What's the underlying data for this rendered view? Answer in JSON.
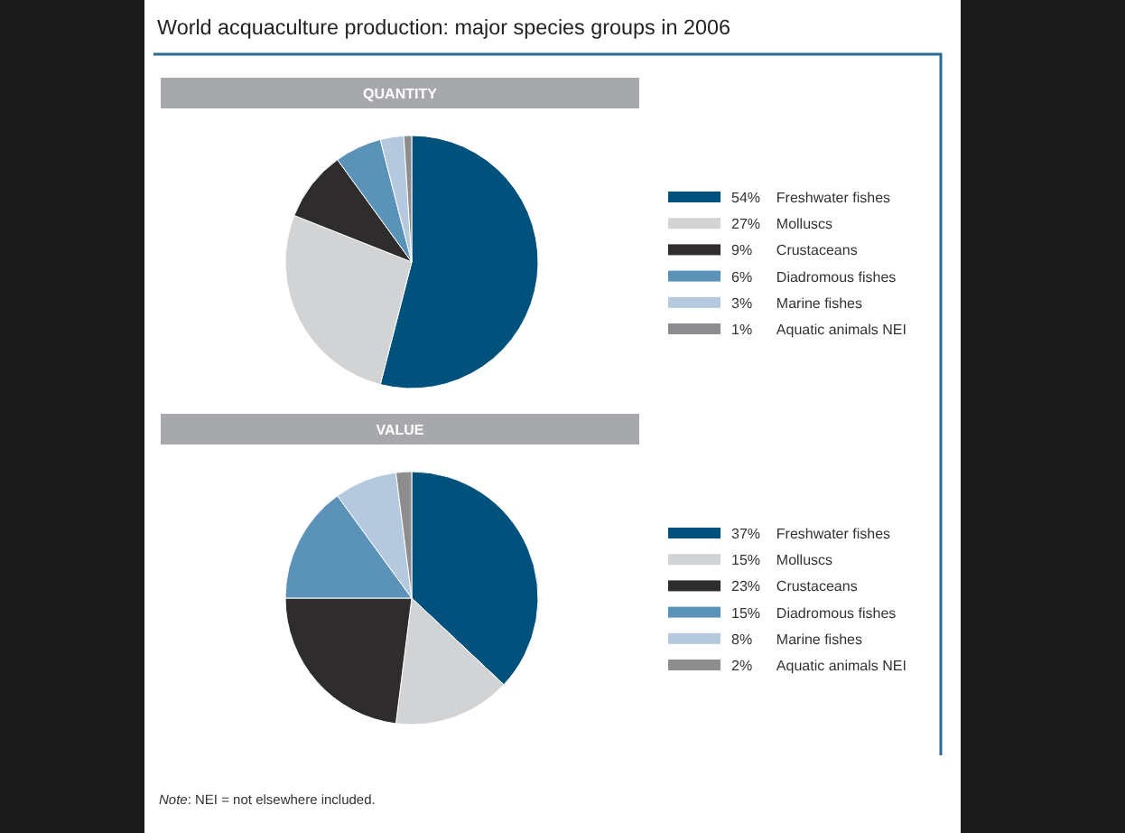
{
  "chart_data": [
    {
      "type": "pie",
      "title": "World acquaculture production: major species groups in 2006",
      "subtitle": "QUANTITY",
      "categories": [
        "Freshwater fishes",
        "Molluscs",
        "Crustaceans",
        "Diadromous fishes",
        "Marine fishes",
        "Aquatic animals NEI"
      ],
      "values": [
        54,
        27,
        9,
        6,
        3,
        1
      ],
      "value_labels": [
        "54%",
        "27%",
        "9%",
        "6%",
        "3%",
        "1%"
      ],
      "colors": [
        "#00527d",
        "#d2d3d5",
        "#2e2c2d",
        "#5b93b8",
        "#b4c9de",
        "#8d8d90"
      ],
      "legend": "right"
    },
    {
      "type": "pie",
      "title": "VALUE",
      "categories": [
        "Freshwater fishes",
        "Molluscs",
        "Crustaceans",
        "Diadromous fishes",
        "Marine fishes",
        "Aquatic animals NEI"
      ],
      "values": [
        37,
        15,
        23,
        15,
        8,
        2
      ],
      "value_labels": [
        "37%",
        "15%",
        "23%",
        "15%",
        "8%",
        "2%"
      ],
      "colors": [
        "#00527d",
        "#d2d3d5",
        "#2e2c2d",
        "#5b93b8",
        "#b4c9de",
        "#8d8d90"
      ],
      "legend": "right",
      "annotations": [
        "Note: NEI = not elsewhere included."
      ]
    }
  ]
}
